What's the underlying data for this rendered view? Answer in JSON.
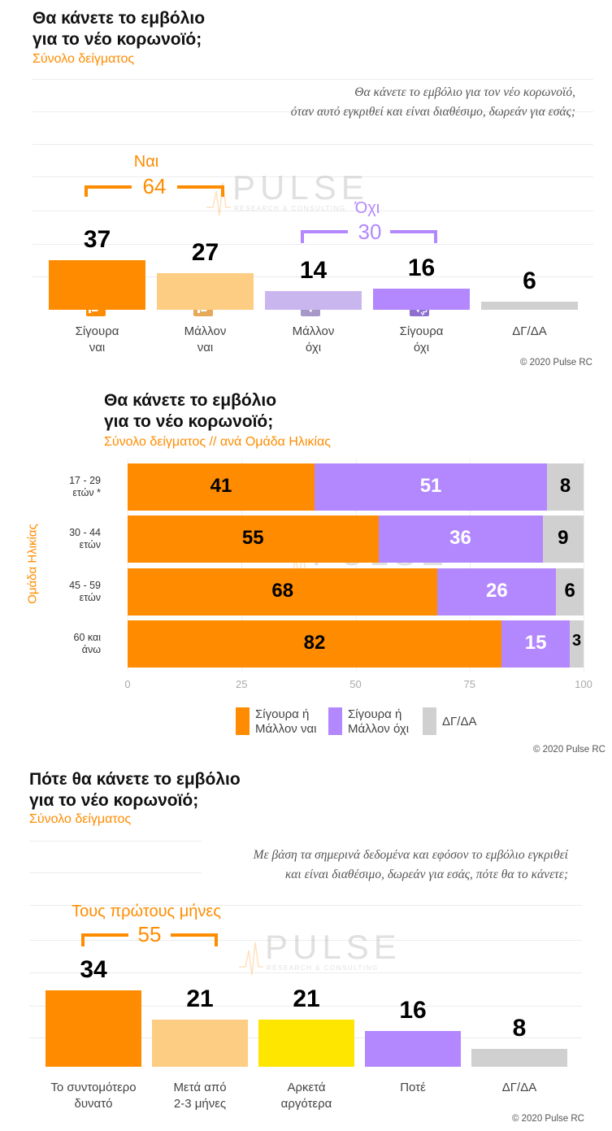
{
  "copyright": "© 2020 Pulse RC",
  "watermark": {
    "brand": "PULSE",
    "tagline": "RESEARCH & CONSULTING"
  },
  "colors": {
    "orange": "#ff8c00",
    "light_orange": "#fccd82",
    "light_purple": "#c9b6ee",
    "purple": "#b388ff",
    "grey": "#d0d0d0",
    "yellow": "#ffe600"
  },
  "section1": {
    "title": "Θα κάνετε το εμβόλιο\nγια το νέο κορωνοϊό;",
    "subtitle": "Σύνολο δείγματος",
    "question": "Θα κάνετε το εμβόλιο για τον νέο κορωνοϊό,\nόταν αυτό εγκριθεί και είναι διαθέσιμο, δωρεάν για εσάς;",
    "bracket_yes": {
      "label": "Ναι",
      "value": "64"
    },
    "bracket_no": {
      "label": "Όχι",
      "value": "30"
    },
    "icons": [
      "thumbs-up-double-icon",
      "thumbs-up-icon",
      "thumbs-down-icon",
      "thumbs-down-double-icon"
    ]
  },
  "section2": {
    "title": "Θα κάνετε το εμβόλιο\nγια το νέο κορωνοϊό;",
    "subtitle": "Σύνολο δείγματος // ανά Ομάδα Ηλικίας",
    "axis_label": "Ομάδα Ηλικίας"
  },
  "section3": {
    "title": "Πότε θα κάνετε το εμβόλιο\nγια το νέο κορωνοϊό;",
    "subtitle": "Σύνολο δείγματος",
    "question": "Με βάση τα σημερινά δεδομένα και εφόσον το εμβόλιο εγκριθεί\nκαι είναι διαθέσιμο, δωρεάν για εσάς, πότε θα το κάνετε;",
    "bracket": {
      "label": "Τους πρώτους μήνες",
      "value": "55"
    }
  },
  "chart_data": [
    {
      "type": "bar",
      "categories": [
        "Σίγουρα\nναι",
        "Μάλλον\nναι",
        "Μάλλον\nόχι",
        "Σίγουρα\nόχι",
        "ΔΓ/ΔΑ"
      ],
      "values": [
        37,
        27,
        14,
        16,
        6
      ],
      "colors": [
        "#ff8c00",
        "#fccd82",
        "#c9b6ee",
        "#b388ff",
        "#d0d0d0"
      ],
      "ylim": [
        0,
        40
      ]
    },
    {
      "type": "bar",
      "orientation": "horizontal",
      "stacked": true,
      "categories": [
        "17 - 29\nετών *",
        "30 - 44\nετών",
        "45 - 59\nετών",
        "60 και\nάνω"
      ],
      "series": [
        {
          "name": "Σίγουρα ή\nΜάλλον ναι",
          "values": [
            41,
            55,
            68,
            82
          ],
          "color": "#ff8c00"
        },
        {
          "name": "Σίγουρα ή\nΜάλλον όχι",
          "values": [
            51,
            36,
            26,
            15
          ],
          "color": "#b388ff"
        },
        {
          "name": "ΔΓ/ΔΑ",
          "values": [
            8,
            9,
            6,
            3
          ],
          "color": "#d0d0d0"
        }
      ],
      "xticks": [
        "0",
        "25",
        "50",
        "75",
        "100"
      ],
      "xlim": [
        0,
        100
      ],
      "legend": "bottom"
    },
    {
      "type": "bar",
      "categories": [
        "Το συντομότερο\nδυνατό",
        "Μετά από\n2-3 μήνες",
        "Αρκετά\nαργότερα",
        "Ποτέ",
        "ΔΓ/ΔΑ"
      ],
      "values": [
        34,
        21,
        21,
        16,
        8
      ],
      "colors": [
        "#ff8c00",
        "#fccd82",
        "#ffe600",
        "#b388ff",
        "#d0d0d0"
      ],
      "ylim": [
        0,
        40
      ]
    }
  ]
}
